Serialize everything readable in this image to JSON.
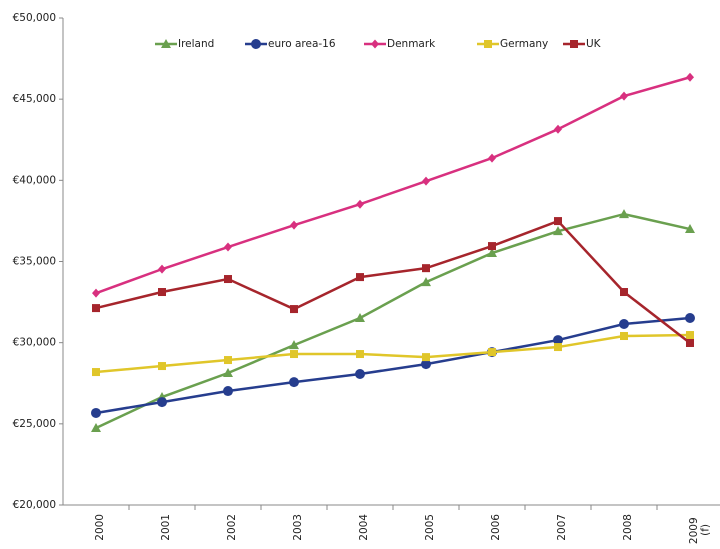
{
  "chart_data": {
    "type": "line",
    "categories": [
      "2000",
      "2001",
      "2002",
      "2003",
      "2004",
      "2005",
      "2006",
      "2007",
      "2008",
      "2009 (f)"
    ],
    "series": [
      {
        "name": "Ireland",
        "color": "#6aa04f",
        "marker": "triangle",
        "values": [
          24740,
          26650,
          28130,
          29850,
          31520,
          33730,
          35520,
          36870,
          37920,
          37000
        ]
      },
      {
        "name": "euro area-16",
        "color": "#263d8e",
        "marker": "circle",
        "values": [
          25670,
          26340,
          27020,
          27570,
          28070,
          28680,
          29420,
          30160,
          31150,
          31520
        ]
      },
      {
        "name": "Denmark",
        "color": "#d8307f",
        "marker": "diamond",
        "values": [
          33050,
          34530,
          35890,
          37240,
          38530,
          39950,
          41370,
          43150,
          45190,
          46350
        ]
      },
      {
        "name": "Germany",
        "color": "#e0c62a",
        "marker": "square",
        "values": [
          28190,
          28560,
          28930,
          29300,
          29300,
          29110,
          29420,
          29730,
          30410,
          30470
        ]
      },
      {
        "name": "UK",
        "color": "#a6252c",
        "marker": "square",
        "values": [
          32130,
          33120,
          33920,
          32070,
          34040,
          34590,
          35950,
          37490,
          33120,
          29980
        ]
      }
    ],
    "ylim": [
      20000,
      50000
    ],
    "yticks": [
      {
        "value": 20000,
        "label": "€20,000"
      },
      {
        "value": 25000,
        "label": "€25,000"
      },
      {
        "value": 30000,
        "label": "€30,000"
      },
      {
        "value": 35000,
        "label": "€35,000"
      },
      {
        "value": 40000,
        "label": "€40,000"
      },
      {
        "value": 45000,
        "label": "€45,000"
      },
      {
        "value": 50000,
        "label": "€50,000"
      }
    ],
    "grid": false,
    "legend": "top"
  }
}
